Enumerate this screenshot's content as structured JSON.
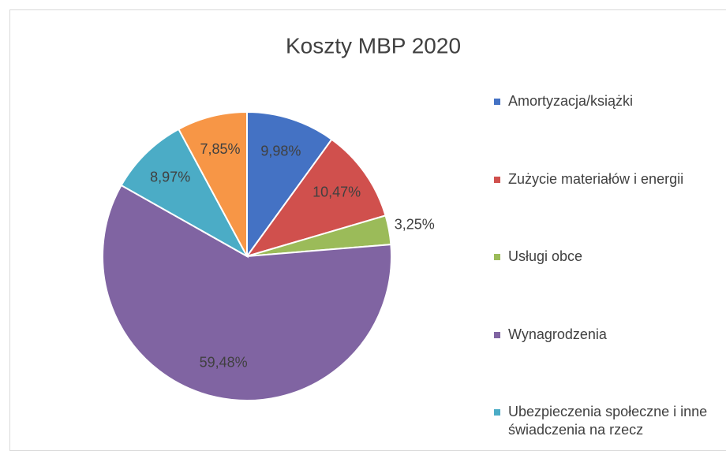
{
  "chart_data": {
    "type": "pie",
    "title": "Koszty MBP 2020",
    "categories": [
      "Amortyzacja/książki",
      "Zużycie materiałów i energii",
      "Usługi obce",
      "Wynagrodzenia",
      "Ubezpieczenia społeczne i inne świadczenia na rzecz",
      null
    ],
    "values": [
      9.98,
      10.47,
      3.25,
      59.48,
      8.97,
      7.85
    ],
    "value_labels": [
      "9,98%",
      "10,47%",
      "3,25%",
      "59,48%",
      "8,97%",
      "7,85%"
    ],
    "colors": [
      "#4472c4",
      "#d0504d",
      "#9bbb59",
      "#8064a2",
      "#4bacc6",
      "#f79646"
    ],
    "legend": "right"
  }
}
